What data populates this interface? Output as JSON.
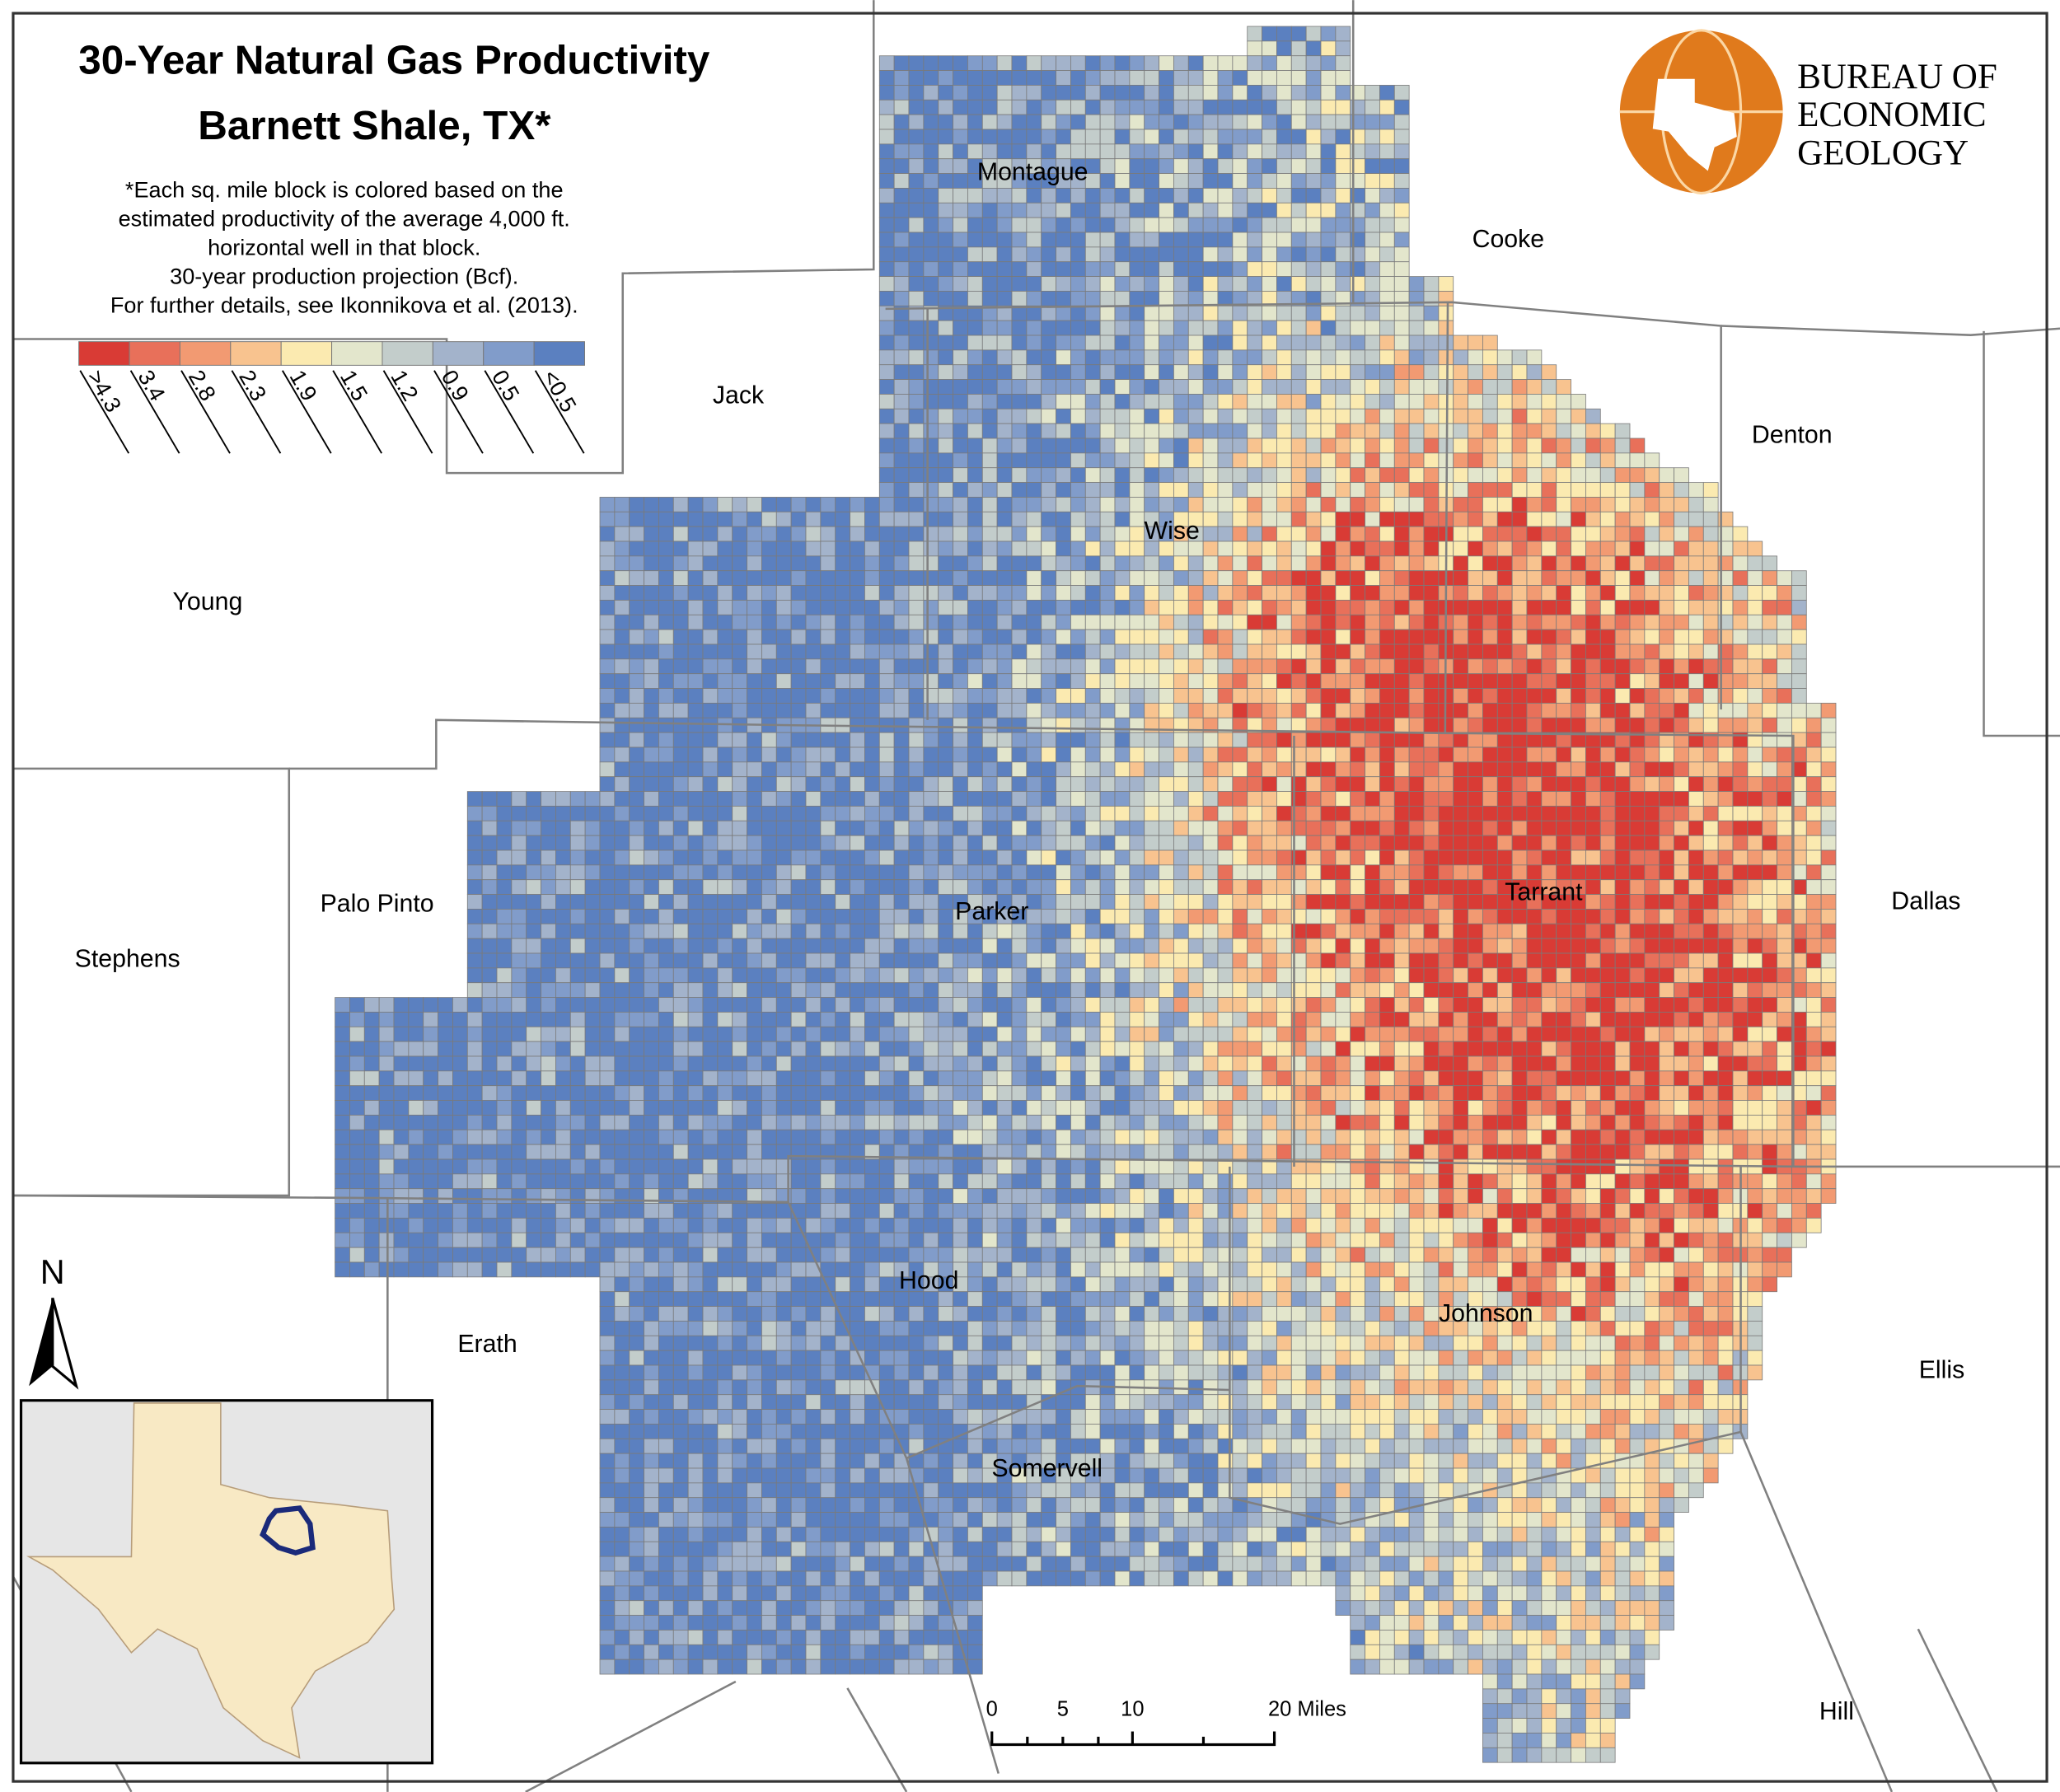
{
  "title": "30-Year Natural Gas Productivity",
  "subtitle": "Barnett Shale, TX*",
  "note": [
    "*Each sq. mile block is colored based on the",
    "estimated productivity of the average 4,000 ft.",
    "horizontal well in that block.",
    "30-year production projection (Bcf).",
    "For further details, see Ikonnikova et al. (2013)."
  ],
  "legend": {
    "labels": [
      ">4.3",
      "3.4",
      "2.8",
      "2.3",
      "1.9",
      "1.5",
      "1.2",
      "0.9",
      "0.5",
      "<0.5"
    ],
    "colors": [
      "#d93b35",
      "#e8705a",
      "#f29a72",
      "#f8c38f",
      "#fbeab0",
      "#e3e6cc",
      "#c3cdcb",
      "#a3b3cb",
      "#819cca",
      "#5b80c0"
    ]
  },
  "logo": [
    "BUREAU OF",
    "ECONOMIC",
    "GEOLOGY"
  ],
  "counties": [
    "Montague",
    "Cooke",
    "Jack",
    "Denton",
    "Wise",
    "Young",
    "Palo Pinto",
    "Parker",
    "Tarrant",
    "Dallas",
    "Stephens",
    "Hood",
    "Erath",
    "Johnson",
    "Ellis",
    "Somervell",
    "Hill"
  ],
  "north": "N",
  "scale_bar": [
    "0",
    "5",
    "10",
    "20 Miles"
  ]
}
